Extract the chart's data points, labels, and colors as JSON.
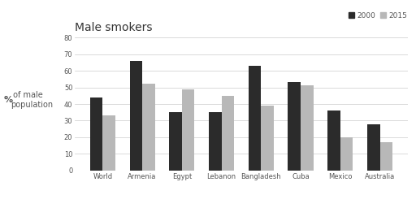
{
  "title": "Male smokers",
  "ylabel_bold": "%",
  "ylabel_rest": " of male\npopulation",
  "categories": [
    "World",
    "Armenia",
    "Egypt",
    "Lebanon",
    "Bangladesh",
    "Cuba",
    "Mexico",
    "Australia"
  ],
  "values_2000": [
    44,
    66,
    35,
    35,
    63,
    53,
    36,
    28
  ],
  "values_2015": [
    33,
    52,
    49,
    45,
    39,
    51,
    20,
    17
  ],
  "color_2000": "#2b2b2b",
  "color_2015": "#b8b8b8",
  "legend_labels": [
    "2000",
    "2015"
  ],
  "ylim": [
    0,
    80
  ],
  "yticks": [
    0,
    10,
    20,
    30,
    40,
    50,
    60,
    70,
    80
  ],
  "background_color": "#ffffff",
  "bar_width": 0.32,
  "title_fontsize": 10,
  "axis_fontsize": 7,
  "tick_fontsize": 6,
  "legend_fontsize": 6.5,
  "grid_color": "#cccccc",
  "text_color": "#555555"
}
